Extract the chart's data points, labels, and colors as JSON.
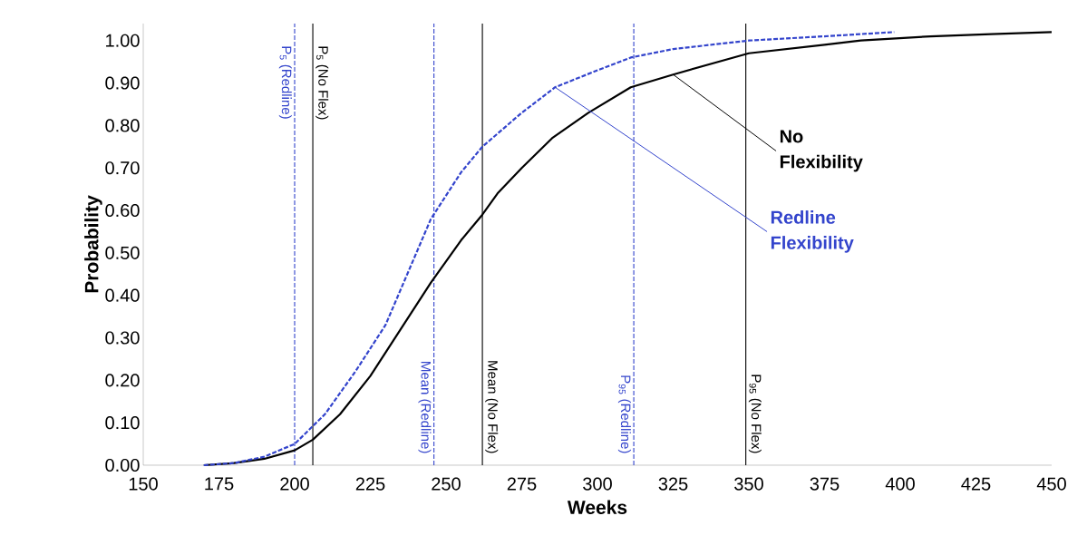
{
  "chart_data": {
    "type": "line",
    "xlabel": "Weeks",
    "ylabel": "Probability",
    "xlim": [
      150,
      450
    ],
    "xticks": [
      150,
      175,
      200,
      225,
      250,
      275,
      300,
      325,
      350,
      375,
      400,
      425,
      450
    ],
    "ylim": [
      0,
      1.04
    ],
    "yticks": [
      {
        "value": 0,
        "label": "0.00"
      },
      {
        "value": 0.1,
        "label": "0.10"
      },
      {
        "value": 0.2,
        "label": "0.20"
      },
      {
        "value": 0.3,
        "label": "0.30"
      },
      {
        "value": 0.4,
        "label": "0.40"
      },
      {
        "value": 0.5,
        "label": "0.50"
      },
      {
        "value": 0.6,
        "label": "0.60"
      },
      {
        "value": 0.7,
        "label": "0.70"
      },
      {
        "value": 0.8,
        "label": "0.80"
      },
      {
        "value": 0.9,
        "label": "0.90"
      },
      {
        "value": 1,
        "label": "1.00"
      }
    ],
    "grid": false,
    "legend": false,
    "marker": "none",
    "series": [
      {
        "color": "#000000",
        "line_style": "solid",
        "x": [
          170,
          180,
          190,
          200,
          206,
          215,
          225,
          235,
          245,
          255,
          262,
          267,
          275,
          285,
          297,
          311,
          325,
          350,
          375,
          387,
          410,
          430,
          450
        ],
        "values": [
          0,
          0.005,
          0.015,
          0.035,
          0.06,
          0.12,
          0.21,
          0.32,
          0.43,
          0.53,
          0.59,
          0.64,
          0.7,
          0.77,
          0.83,
          0.89,
          0.92,
          0.97,
          0.99,
          1.0,
          1.01,
          1.015,
          1.02
        ]
      },
      {
        "color": "#3344cc",
        "line_style": "dashed",
        "x": [
          170,
          180,
          190,
          200,
          210,
          220,
          230,
          245,
          255,
          262,
          275,
          286,
          300,
          311,
          325,
          350,
          375,
          398
        ],
        "values": [
          0,
          0.005,
          0.02,
          0.05,
          0.12,
          0.22,
          0.33,
          0.58,
          0.69,
          0.75,
          0.83,
          0.89,
          0.93,
          0.96,
          0.98,
          1.0,
          1.01,
          1.02
        ]
      }
    ],
    "ref_lines": [
      {
        "axis": "x",
        "value": 200,
        "label": "P$_{5}$ (Redline)",
        "color": "#3344cc",
        "line_style": "dashed"
      },
      {
        "axis": "x",
        "value": 206,
        "label": "P$_{5}$ (No Flex)",
        "color": "#000000",
        "line_style": "solid"
      },
      {
        "axis": "x",
        "value": 246,
        "label": "Mean (Redline)",
        "color": "#3344cc",
        "line_style": "dashed"
      },
      {
        "axis": "x",
        "value": 262,
        "label": "Mean (No Flex)",
        "color": "#000000",
        "line_style": "solid"
      },
      {
        "axis": "x",
        "value": 312,
        "label": "P$_{95}$ (Redline)",
        "color": "#3344cc",
        "line_style": "dashed"
      },
      {
        "axis": "x",
        "value": 349,
        "label": "P$_{95}$ (No Flex)",
        "color": "#000000",
        "line_style": "solid"
      }
    ],
    "annotations": [
      {
        "text": "No Flexibility",
        "x": 325,
        "y": 0.92
      },
      {
        "text": "Redline Flexibility",
        "x": 286,
        "y": 0.89
      }
    ]
  }
}
